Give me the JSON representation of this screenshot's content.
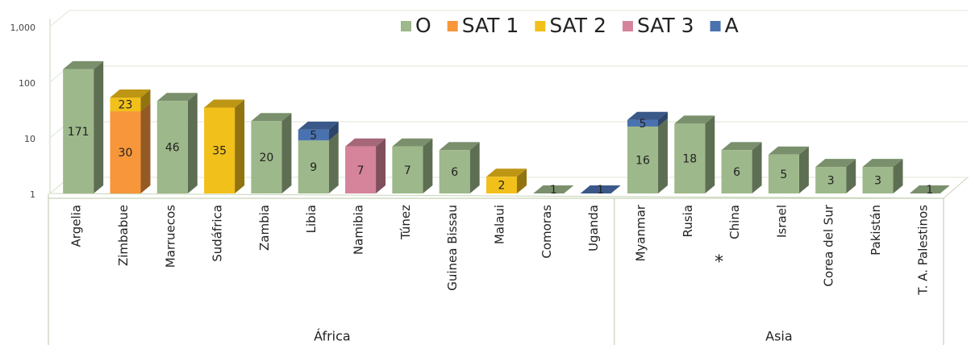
{
  "chart_data": {
    "type": "bar",
    "stacked": true,
    "log_scale": true,
    "grid": true,
    "legend": "top",
    "groups": [
      {
        "name": "África",
        "categories": [
          "Argelia",
          "Zimbabue",
          "Marruecos",
          "Sudáfrica",
          "Zambia",
          "Libia",
          "Namibia",
          "Túnez",
          "Guinea Bissau",
          "Malaui",
          "Comoras",
          "Uganda"
        ]
      },
      {
        "name": "Asia",
        "categories": [
          "Myanmar",
          "Rusia",
          "China",
          "Israel",
          "Corea del Sur",
          "Pakistán",
          "T. A. Palestinos"
        ]
      }
    ],
    "annotation": "*",
    "series": [
      {
        "name": "O",
        "color": "#9db88a",
        "values": [
          171,
          null,
          46,
          null,
          20,
          9,
          null,
          7,
          6,
          null,
          1,
          null,
          16,
          18,
          6,
          5,
          3,
          3,
          1
        ]
      },
      {
        "name": "SAT 1",
        "color": "#f7963a",
        "values": [
          null,
          30,
          null,
          null,
          null,
          null,
          null,
          null,
          null,
          null,
          null,
          null,
          null,
          null,
          null,
          null,
          null,
          null,
          null
        ]
      },
      {
        "name": "SAT 2",
        "color": "#f2c01a",
        "values": [
          null,
          23,
          null,
          35,
          null,
          null,
          null,
          null,
          null,
          2,
          null,
          null,
          null,
          null,
          null,
          null,
          null,
          null,
          null
        ]
      },
      {
        "name": "SAT 3",
        "color": "#d5849b",
        "values": [
          null,
          null,
          null,
          null,
          null,
          null,
          7,
          null,
          null,
          null,
          null,
          null,
          null,
          null,
          null,
          null,
          null,
          null,
          null
        ]
      },
      {
        "name": "A",
        "color": "#4a72b0",
        "values": [
          null,
          null,
          null,
          null,
          null,
          5,
          null,
          null,
          null,
          null,
          null,
          1,
          5,
          null,
          null,
          null,
          null,
          null,
          null
        ]
      }
    ],
    "ylim": [
      1,
      1000
    ],
    "yticks": [
      1,
      10,
      100,
      {
        "value": 1000,
        "label": "1,000"
      }
    ]
  }
}
